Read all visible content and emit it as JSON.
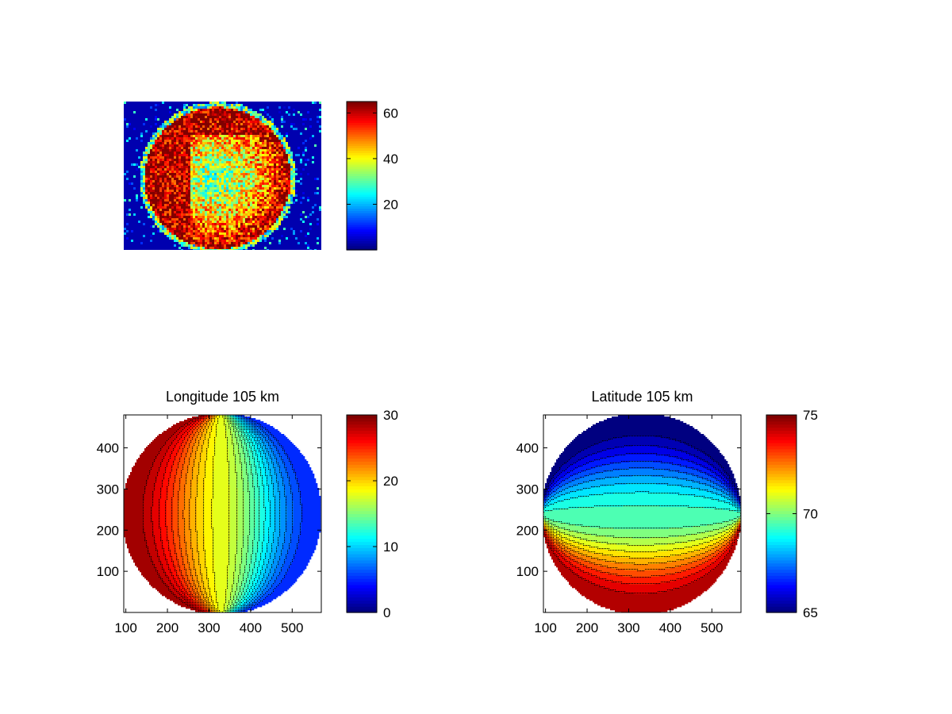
{
  "figure": {
    "background": "#ffffff",
    "colormap": "jet"
  },
  "chart_data": [
    {
      "id": "image",
      "type": "heatmap",
      "title": "",
      "xlabel": "",
      "ylabel": "",
      "description_values": {
        "disk_value_center": 32,
        "disk_value_rim": 64,
        "background_value": 3,
        "clim": [
          0,
          65
        ]
      },
      "axes_visible": false,
      "colorbar": {
        "ticks": [
          20,
          40,
          60
        ],
        "tick_labels": [
          "20",
          "40",
          "60"
        ],
        "clim": [
          0,
          65
        ]
      }
    },
    {
      "id": "longitude",
      "type": "heatmap",
      "title": "Longitude 105 km",
      "xlabel": "",
      "ylabel": "",
      "xlim": [
        95,
        570
      ],
      "ylim": [
        0,
        480
      ],
      "xticks": [
        100,
        200,
        300,
        400,
        500
      ],
      "xtick_labels": [
        "100",
        "200",
        "300",
        "400",
        "500"
      ],
      "yticks": [
        100,
        200,
        300,
        400
      ],
      "ytick_labels": [
        "100",
        "200",
        "300",
        "400"
      ],
      "disk": {
        "cx": 330,
        "cy": 240,
        "rx": 240,
        "ry": 245
      },
      "contour_levels": [
        5,
        6,
        7,
        8,
        9,
        10,
        11,
        12,
        13,
        14,
        15,
        16,
        17,
        18,
        19,
        20,
        21,
        22,
        23,
        24,
        25,
        26,
        27,
        28,
        29,
        30
      ],
      "field": "longitude_deg",
      "value_left_edge": 30,
      "value_center": 18.5,
      "value_right_edge": 5,
      "clim": [
        0,
        30
      ],
      "colorbar": {
        "ticks": [
          0,
          10,
          20,
          30
        ],
        "tick_labels": [
          "0",
          "10",
          "20",
          "30"
        ],
        "clim": [
          0,
          30
        ]
      }
    },
    {
      "id": "latitude",
      "type": "heatmap",
      "title": "Latitude 105 km",
      "xlabel": "",
      "ylabel": "",
      "xlim": [
        95,
        570
      ],
      "ylim": [
        0,
        480
      ],
      "xticks": [
        100,
        200,
        300,
        400,
        500
      ],
      "xtick_labels": [
        "100",
        "200",
        "300",
        "400",
        "500"
      ],
      "yticks": [
        100,
        200,
        300,
        400
      ],
      "ytick_labels": [
        "100",
        "200",
        "300",
        "400"
      ],
      "disk": {
        "cx": 330,
        "cy": 240,
        "rx": 240,
        "ry": 245
      },
      "contour_levels": [
        65,
        65.5,
        66,
        66.5,
        67,
        67.5,
        68,
        68.5,
        69,
        69.5,
        70,
        70.5,
        71,
        71.5,
        72,
        72.5,
        73,
        73.5,
        74,
        74.5,
        75
      ],
      "field": "latitude_deg",
      "value_top_edge": 65,
      "value_center": 69.6,
      "value_bottom_edge": 75,
      "clim": [
        65,
        75
      ],
      "colorbar": {
        "ticks": [
          65,
          70,
          75
        ],
        "tick_labels": [
          "65",
          "70",
          "75"
        ],
        "clim": [
          65,
          75
        ]
      }
    }
  ]
}
